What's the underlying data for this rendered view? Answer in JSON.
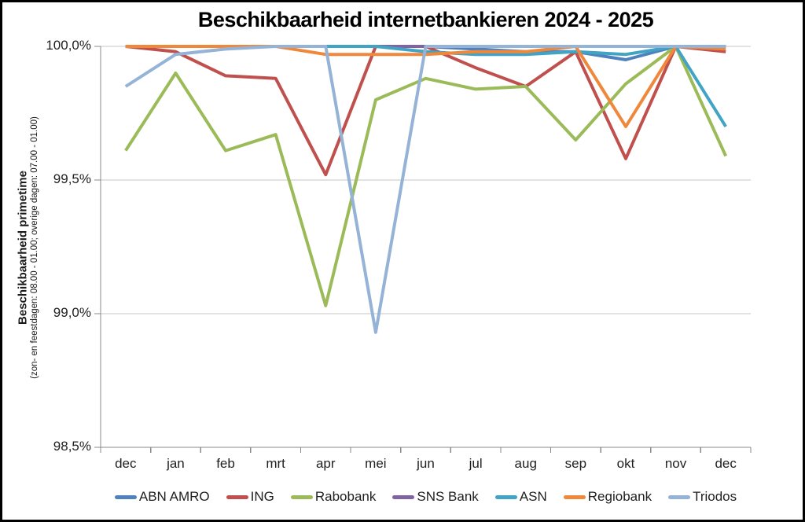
{
  "chart_data": {
    "type": "line",
    "title": "Beschikbaarheid internetbankieren 2024 - 2025",
    "ylabel": "Beschikbaarheid primetime",
    "ylabel_sub": "(zon- en feestdagen: 08.00 - 01.00; overige dagen: 07.00 - 01.00)",
    "xlabel": "",
    "ylim": [
      98.5,
      100.0
    ],
    "y_tick_step": 0.5,
    "grid": "horizontal",
    "legend_position": "bottom",
    "axis_color": "#898989",
    "gridline_color": "#C6C6C6",
    "y_ticks": [
      {
        "value": 100.0,
        "label": "100,0%"
      },
      {
        "value": 99.5,
        "label": "99,5%"
      },
      {
        "value": 99.0,
        "label": "99,0%"
      },
      {
        "value": 98.5,
        "label": "98,5%"
      }
    ],
    "categories": [
      "dec",
      "jan",
      "feb",
      "mrt",
      "apr",
      "mei",
      "jun",
      "jul",
      "aug",
      "sep",
      "okt",
      "nov",
      "dec"
    ],
    "series": [
      {
        "name": "ABN AMRO",
        "color": "#4F81BD",
        "values": [
          100.0,
          100.0,
          100.0,
          100.0,
          100.0,
          100.0,
          100.0,
          99.99,
          99.98,
          99.98,
          99.95,
          100.0,
          100.0
        ]
      },
      {
        "name": "ING",
        "color": "#C0504D",
        "values": [
          100.0,
          99.98,
          99.89,
          99.88,
          99.52,
          100.0,
          100.0,
          99.92,
          99.85,
          99.98,
          99.58,
          100.0,
          99.98
        ]
      },
      {
        "name": "Rabobank",
        "color": "#9BBB59",
        "values": [
          99.61,
          99.9,
          99.61,
          99.67,
          99.03,
          99.8,
          99.88,
          99.84,
          99.85,
          99.65,
          99.86,
          100.0,
          99.59
        ]
      },
      {
        "name": "SNS Bank",
        "color": "#8064A2",
        "values": [
          100.0,
          100.0,
          100.0,
          100.0,
          100.0,
          100.0,
          100.0,
          100.0,
          100.0,
          100.0,
          100.0,
          100.0,
          100.0
        ]
      },
      {
        "name": "ASN",
        "color": "#41A4C4",
        "values": [
          100.0,
          100.0,
          100.0,
          100.0,
          100.0,
          100.0,
          99.98,
          99.97,
          99.97,
          99.98,
          99.97,
          100.0,
          99.7
        ]
      },
      {
        "name": "Regiobank",
        "color": "#F0883C",
        "values": [
          100.0,
          100.0,
          100.0,
          100.0,
          99.97,
          99.97,
          99.97,
          99.98,
          99.98,
          100.0,
          99.7,
          100.0,
          99.99
        ]
      },
      {
        "name": "Triodos",
        "color": "#95B3D7",
        "values": [
          99.85,
          99.97,
          99.99,
          100.0,
          100.0,
          98.93,
          100.0,
          100.0,
          100.0,
          100.0,
          100.0,
          100.0,
          100.0
        ]
      }
    ]
  }
}
